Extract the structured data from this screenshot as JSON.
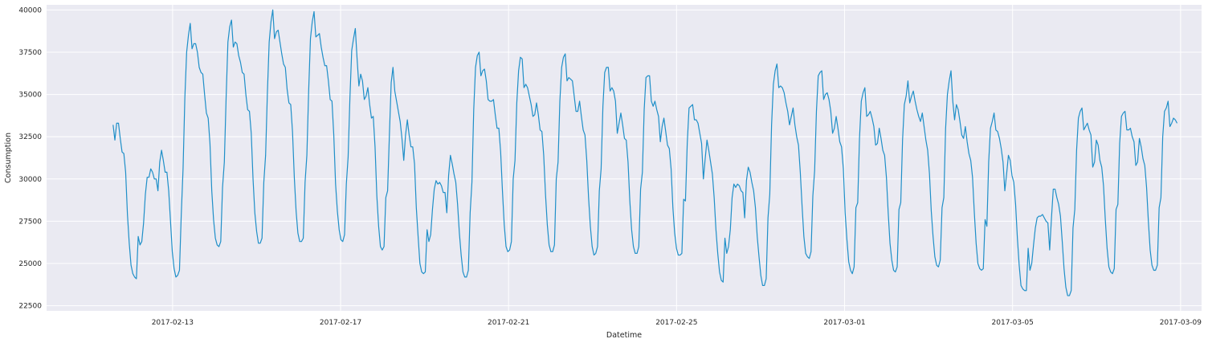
{
  "chart_data": {
    "type": "line",
    "xlabel": "Datetime",
    "ylabel": "Consumption",
    "x_start": "2017-02-11T14:00",
    "x_end": "2017-03-08T22:00",
    "xlim": [
      "2017-02-10T00:00",
      "2017-03-09T12:00"
    ],
    "ylim": [
      22200,
      40300
    ],
    "x_ticks": [
      "2017-02-13",
      "2017-02-17",
      "2017-02-21",
      "2017-02-25",
      "2017-03-01",
      "2017-03-05",
      "2017-03-09"
    ],
    "y_ticks": [
      22500,
      25000,
      27500,
      30000,
      32500,
      35000,
      37500,
      40000
    ],
    "grid": true,
    "background": "#eaeaf2",
    "line_color": "#1f8fc8",
    "series": [
      {
        "values": [
          33200,
          32300,
          33300,
          33300,
          32400,
          31600,
          31500,
          30400,
          27900,
          26200,
          24900,
          24400,
          24200,
          24100,
          26600,
          26100,
          26300,
          27400,
          29100,
          30100,
          30100,
          30600,
          30400,
          30000,
          30000,
          29300,
          31000,
          31700,
          31100,
          30400,
          30400,
          29300,
          27500,
          25700,
          24700,
          24200,
          24300,
          24600,
          27900,
          30600,
          34800,
          37500,
          38500,
          39200,
          37700,
          38000,
          38000,
          37500,
          36600,
          36300,
          36200,
          35000,
          33900,
          33600,
          32100,
          29300,
          27600,
          26500,
          26100,
          26000,
          26300,
          29500,
          31000,
          34800,
          38100,
          39000,
          39400,
          37800,
          38100,
          38000,
          37300,
          36900,
          36300,
          36200,
          35000,
          34100,
          34000,
          32700,
          30000,
          28000,
          26900,
          26200,
          26200,
          26500,
          29800,
          31400,
          35100,
          38100,
          39300,
          40000,
          38300,
          38700,
          38800,
          38100,
          37400,
          36800,
          36600,
          35300,
          34500,
          34400,
          32800,
          30100,
          28100,
          26800,
          26300,
          26300,
          26500,
          29800,
          31400,
          35200,
          38300,
          39300,
          39900,
          38400,
          38500,
          38600,
          37800,
          37200,
          36700,
          36700,
          35800,
          34700,
          34600,
          32600,
          29700,
          28100,
          27000,
          26400,
          26300,
          26700,
          29700,
          31300,
          34800,
          37600,
          38300,
          38900,
          37100,
          35500,
          36200,
          35800,
          34700,
          34900,
          35400,
          34400,
          33600,
          33700,
          31900,
          29000,
          27200,
          26000,
          25800,
          26000,
          28900,
          29300,
          32600,
          35700,
          36600,
          35200,
          34600,
          34000,
          33400,
          32400,
          31100,
          32600,
          33500,
          32600,
          31900,
          31900,
          30900,
          28300,
          26600,
          25000,
          24500,
          24400,
          24500,
          27000,
          26300,
          26700,
          28200,
          29400,
          29900,
          29700,
          29800,
          29600,
          29200,
          29200,
          28000,
          30200,
          31400,
          30900,
          30300,
          29800,
          28500,
          26800,
          25500,
          24500,
          24200,
          24200,
          24600,
          28000,
          29800,
          34100,
          36600,
          37300,
          37500,
          36100,
          36400,
          36500,
          35800,
          34700,
          34600,
          34600,
          34700,
          33800,
          33000,
          33000,
          31600,
          29300,
          27300,
          26000,
          25700,
          25800,
          26300,
          30000,
          31100,
          34500,
          36400,
          37200,
          37100,
          35400,
          35600,
          35400,
          34900,
          34400,
          33700,
          33800,
          34500,
          33800,
          32900,
          32800,
          31400,
          29100,
          27300,
          26100,
          25700,
          25700,
          26100,
          30000,
          31000,
          34600,
          36600,
          37200,
          37400,
          35800,
          36000,
          35900,
          35800,
          34900,
          34000,
          34000,
          34600,
          33700,
          32900,
          32600,
          31100,
          28900,
          27200,
          26000,
          25500,
          25600,
          26000,
          29300,
          30600,
          34300,
          36300,
          36600,
          36600,
          35200,
          35400,
          35200,
          34600,
          32700,
          33300,
          33900,
          33200,
          32400,
          32300,
          31000,
          28700,
          27000,
          26000,
          25600,
          25600,
          26000,
          29400,
          30400,
          34100,
          36000,
          36100,
          36100,
          34600,
          34300,
          34600,
          34100,
          33700,
          32200,
          33100,
          33600,
          32800,
          32000,
          31800,
          30600,
          28300,
          26800,
          25900,
          25500,
          25500,
          25600,
          28800,
          28700,
          32100,
          34200,
          34300,
          34400,
          33500,
          33500,
          33300,
          32700,
          32100,
          30000,
          31200,
          32300,
          31700,
          31000,
          30300,
          28900,
          27000,
          25600,
          24500,
          24000,
          23900,
          26500,
          25600,
          26000,
          27000,
          28900,
          29700,
          29500,
          29700,
          29600,
          29300,
          29200,
          27700,
          29900,
          30700,
          30400,
          29800,
          29300,
          28300,
          26600,
          25400,
          24300,
          23700,
          23700,
          24100,
          27700,
          29100,
          33200,
          35600,
          36400,
          36800,
          35400,
          35500,
          35400,
          35100,
          34500,
          34000,
          33200,
          33700,
          34200,
          33200,
          32500,
          32000,
          30400,
          28400,
          26600,
          25600,
          25400,
          25300,
          25700,
          29000,
          30500,
          34000,
          36100,
          36300,
          36400,
          34700,
          35000,
          35100,
          34700,
          34000,
          32700,
          33000,
          33700,
          33000,
          32200,
          31900,
          30600,
          28000,
          26400,
          25100,
          24600,
          24400,
          24800,
          28300,
          28600,
          32400,
          34600,
          35100,
          35400,
          33700,
          33800,
          34000,
          33600,
          33100,
          32000,
          32100,
          33000,
          32400,
          31700,
          31400,
          30100,
          28000,
          26200,
          25200,
          24600,
          24500,
          24800,
          28200,
          28600,
          32300,
          34400,
          34900,
          35800,
          34500,
          34900,
          35200,
          34600,
          34100,
          33700,
          33400,
          33900,
          33100,
          32300,
          31700,
          30300,
          28100,
          26600,
          25400,
          24900,
          24800,
          25200,
          28300,
          28900,
          33000,
          35000,
          35800,
          36400,
          34600,
          33500,
          34400,
          34100,
          33400,
          32600,
          32400,
          33100,
          32200,
          31500,
          31100,
          30100,
          28000,
          26200,
          25000,
          24700,
          24600,
          24700,
          27600,
          27200,
          31000,
          33000,
          33400,
          33900,
          32900,
          32800,
          32400,
          31800,
          31000,
          29300,
          30300,
          31400,
          31100,
          30200,
          29800,
          28500,
          26500,
          24900,
          23700,
          23500,
          23400,
          23400,
          25900,
          24600,
          25000,
          26100,
          27100,
          27700,
          27800,
          27800,
          27900,
          27700,
          27500,
          27400,
          25800,
          27700,
          29400,
          29400,
          28900,
          28500,
          27800,
          26300,
          24700,
          23600,
          23100,
          23100,
          23400,
          27100,
          28200,
          31700,
          33600,
          34000,
          34200,
          32900,
          33100,
          33300,
          32900,
          32600,
          30700,
          31000,
          32300,
          32000,
          31100,
          30700,
          29600,
          27600,
          25900,
          24800,
          24500,
          24400,
          24700,
          28200,
          28500,
          32100,
          33700,
          33900,
          34000,
          32900,
          32900,
          33000,
          32500,
          32200,
          30800,
          31000,
          32400,
          31900,
          31200,
          30800,
          29500,
          27500,
          25800,
          24900,
          24600,
          24600,
          24900,
          28300,
          28900,
          32500,
          34000,
          34200,
          34600,
          33100,
          33300,
          33600,
          33500,
          33300
        ]
      }
    ]
  }
}
